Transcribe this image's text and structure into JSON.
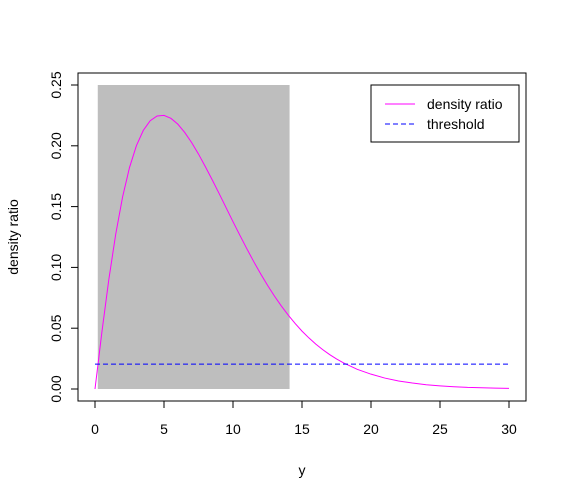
{
  "chart_data": {
    "type": "line",
    "title": "",
    "xlabel": "y",
    "ylabel": "density ratio",
    "xlim": [
      0,
      30
    ],
    "ylim": [
      0,
      0.25
    ],
    "x_ticks": [
      0,
      5,
      10,
      15,
      20,
      25,
      30
    ],
    "x_tick_labels": [
      "0",
      "5",
      "10",
      "15",
      "20",
      "25",
      "30"
    ],
    "y_ticks": [
      0,
      0.05,
      0.1,
      0.15,
      0.2,
      0.25
    ],
    "y_tick_labels": [
      "0.00",
      "0.05",
      "0.10",
      "0.15",
      "0.20",
      "0.25"
    ],
    "grid": false,
    "legend_position": "top-right",
    "shaded_region": {
      "x_from": 0.2,
      "x_to": 14.1,
      "y_from": 0,
      "y_to": 0.25,
      "color": "#bebebe"
    },
    "series": [
      {
        "name": "density ratio",
        "style": "solid",
        "color": "#ff00ff",
        "x": [
          0,
          0.5,
          1,
          1.5,
          2,
          2.5,
          3,
          3.5,
          4,
          4.5,
          5,
          5.5,
          6,
          6.5,
          7,
          7.5,
          8,
          8.5,
          9,
          9.5,
          10,
          10.5,
          11,
          11.5,
          12,
          12.5,
          13,
          13.5,
          14,
          14.5,
          15,
          15.5,
          16,
          16.5,
          17,
          17.5,
          18,
          19,
          20,
          21,
          22,
          23,
          24,
          25,
          26,
          27,
          28,
          29,
          30
        ],
        "y": [
          0,
          0.0468,
          0.0899,
          0.1272,
          0.158,
          0.1821,
          0.2001,
          0.2127,
          0.2206,
          0.2245,
          0.225,
          0.2226,
          0.2178,
          0.211,
          0.2027,
          0.1932,
          0.1828,
          0.1719,
          0.1606,
          0.1491,
          0.1376,
          0.1264,
          0.1154,
          0.1048,
          0.0948,
          0.0853,
          0.0765,
          0.0683,
          0.0608,
          0.0539,
          0.0476,
          0.042,
          0.0369,
          0.0324,
          0.0283,
          0.0247,
          0.0215,
          0.0162,
          0.0122,
          0.009,
          0.0066,
          0.0049,
          0.0035,
          0.0026,
          0.0019,
          0.0013,
          0.001,
          0.0007,
          0.0005
        ]
      },
      {
        "name": "threshold",
        "style": "dashed",
        "color": "#0000ff",
        "x": [
          0,
          30
        ],
        "y": [
          0.0205,
          0.0205
        ]
      }
    ]
  }
}
